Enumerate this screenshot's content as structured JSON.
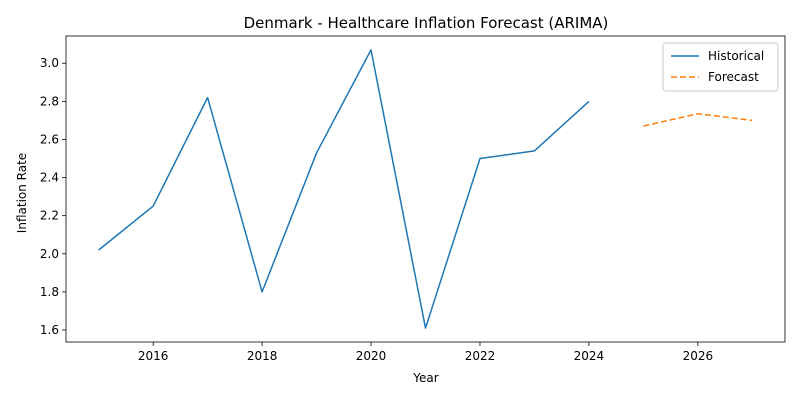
{
  "chart_data": {
    "type": "line",
    "title": "Denmark - Healthcare Inflation Forecast (ARIMA)",
    "xlabel": "Year",
    "ylabel": "Inflation Rate",
    "xlim": [
      2014.4,
      2027.6
    ],
    "ylim": [
      1.537,
      3.143
    ],
    "x_ticks": [
      2016,
      2018,
      2020,
      2022,
      2024,
      2026
    ],
    "y_ticks": [
      1.6,
      1.8,
      2.0,
      2.2,
      2.4,
      2.6,
      2.8,
      3.0
    ],
    "grid": false,
    "legend_position": "upper right",
    "series": [
      {
        "name": "Historical",
        "color": "#1f77b4",
        "style": "solid",
        "x": [
          2015,
          2016,
          2017,
          2018,
          2019,
          2020,
          2021,
          2022,
          2023,
          2024
        ],
        "values": [
          2.02,
          2.25,
          2.82,
          1.8,
          2.53,
          3.07,
          1.61,
          2.5,
          2.54,
          2.8
        ]
      },
      {
        "name": "Forecast",
        "color": "#ff7f0e",
        "style": "dashed",
        "x": [
          2025,
          2026,
          2027
        ],
        "values": [
          2.67,
          2.735,
          2.7
        ]
      }
    ]
  }
}
